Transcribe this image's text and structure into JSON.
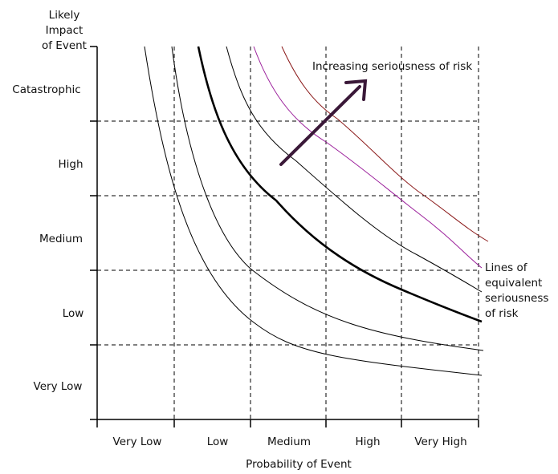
{
  "y_axis_title": [
    "Likely",
    "Impact",
    "of Event"
  ],
  "y_categories": [
    "Catastrophic",
    "High",
    "Medium",
    "Low",
    "Very Low"
  ],
  "x_categories": [
    "Very Low",
    "Low",
    "Medium",
    "High",
    "Very High"
  ],
  "x_axis_title": "Probability of Event",
  "arrow_label": "Increasing seriousness of risk",
  "curves_label": [
    "Lines of",
    "equivalent",
    "seriousness",
    "of risk"
  ],
  "colors": {
    "arrow": "#3a1838",
    "arrow_label": "#4a1a45",
    "curve_default": "#000000",
    "curve_purple": "#9b1f9b",
    "curve_red": "#8b1a1a"
  }
}
